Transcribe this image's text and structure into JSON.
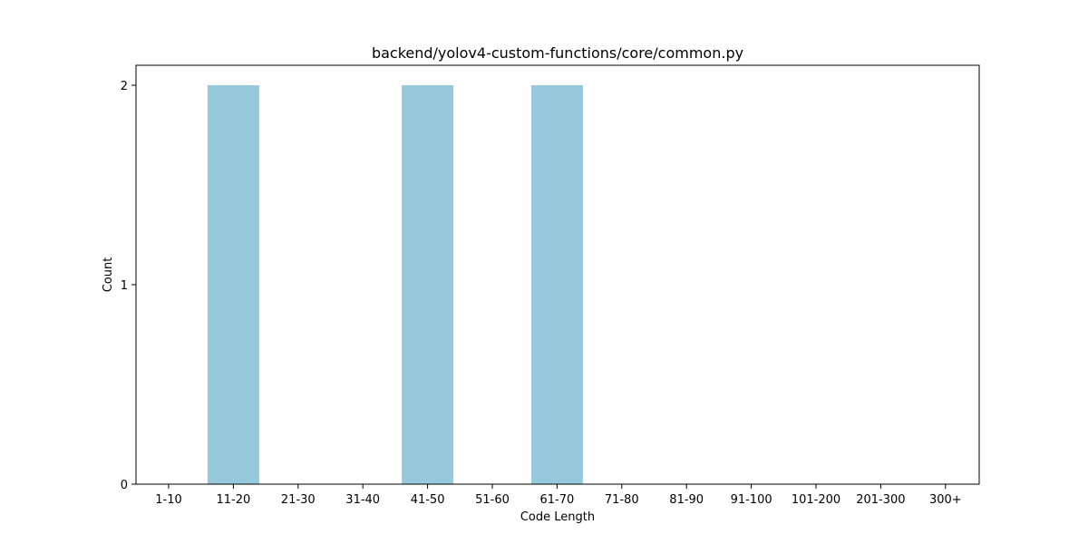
{
  "chart_data": {
    "type": "bar",
    "title": "backend/yolov4-custom-functions/core/common.py",
    "xlabel": "Code Length",
    "ylabel": "Count",
    "categories": [
      "1-10",
      "11-20",
      "21-30",
      "31-40",
      "41-50",
      "51-60",
      "61-70",
      "71-80",
      "81-90",
      "91-100",
      "101-200",
      "201-300",
      "300+"
    ],
    "values": [
      0,
      2,
      0,
      0,
      2,
      0,
      2,
      0,
      0,
      0,
      0,
      0,
      0
    ],
    "ylim": [
      0,
      2.1
    ],
    "yticks": [
      0,
      1,
      2
    ],
    "grid": false,
    "bar_color": "#96c9dc"
  }
}
